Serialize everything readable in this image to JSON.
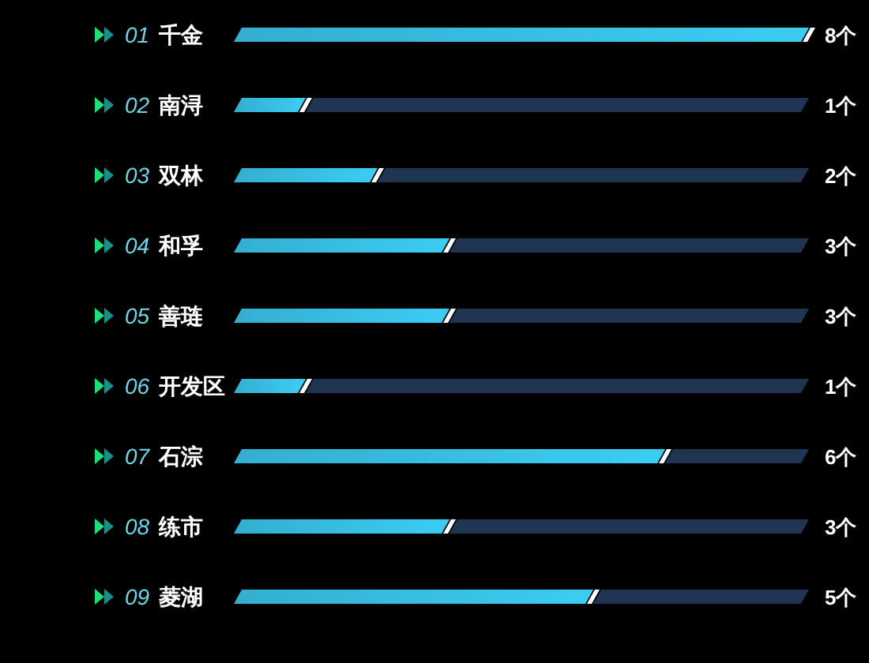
{
  "chart_data": {
    "type": "bar",
    "orientation": "horizontal",
    "stacked": true,
    "categories": [
      "01 千金",
      "02 南浔",
      "03 双林",
      "04 和孚",
      "05 善琏",
      "06 开发区",
      "07 石淙",
      "08 练市",
      "09 菱湖"
    ],
    "series": [
      {
        "color": "#3ccdf4",
        "values": [
          8,
          1,
          2,
          3,
          3,
          1,
          6,
          3,
          5
        ],
        "value_labels": [
          "8个",
          "1个",
          "2个",
          "3个",
          "3个",
          "1个",
          "6个",
          "3个",
          "5个"
        ]
      },
      {
        "color": "#1e3450",
        "values": [
          0,
          7,
          6,
          5,
          5,
          7,
          2,
          5,
          3
        ]
      }
    ]
  }
}
